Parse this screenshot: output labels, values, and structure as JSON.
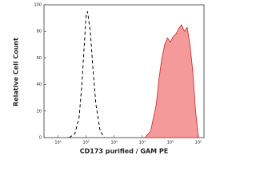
{
  "chart_data": {
    "type": "line",
    "xlabel": "CD173 purified / GAM PE",
    "ylabel": "Relative Cell Count",
    "xlim": [
      0.5,
      6.2
    ],
    "xticks": [
      {
        "value": 1,
        "label": "10¹"
      },
      {
        "value": 2,
        "label": "10²"
      },
      {
        "value": 3,
        "label": "10³"
      },
      {
        "value": 4,
        "label": "10⁴"
      },
      {
        "value": 5,
        "label": "10⁵"
      },
      {
        "value": 6,
        "label": "10⁶"
      }
    ],
    "ylim": [
      0,
      100
    ],
    "yticks": [
      0,
      20,
      40,
      60,
      80,
      100
    ],
    "series": [
      {
        "color": "#000000",
        "dashed": true,
        "filled": false,
        "x": [
          1.4,
          1.6,
          1.75,
          1.85,
          1.95,
          2.0,
          2.05,
          2.15,
          2.25,
          2.35,
          2.5,
          2.65
        ],
        "values": [
          0,
          3,
          15,
          40,
          75,
          92,
          95,
          80,
          50,
          25,
          5,
          0
        ]
      },
      {
        "color": "#cc2222",
        "fill": "#f59a9a",
        "dashed": false,
        "filled": true,
        "x": [
          4.1,
          4.3,
          4.5,
          4.6,
          4.7,
          4.8,
          4.9,
          5.0,
          5.1,
          5.2,
          5.3,
          5.4,
          5.5,
          5.6,
          5.7,
          5.8,
          5.9,
          6.0
        ],
        "values": [
          0,
          5,
          25,
          45,
          60,
          70,
          75,
          72,
          76,
          78,
          82,
          85,
          80,
          83,
          70,
          50,
          20,
          0
        ]
      }
    ]
  }
}
